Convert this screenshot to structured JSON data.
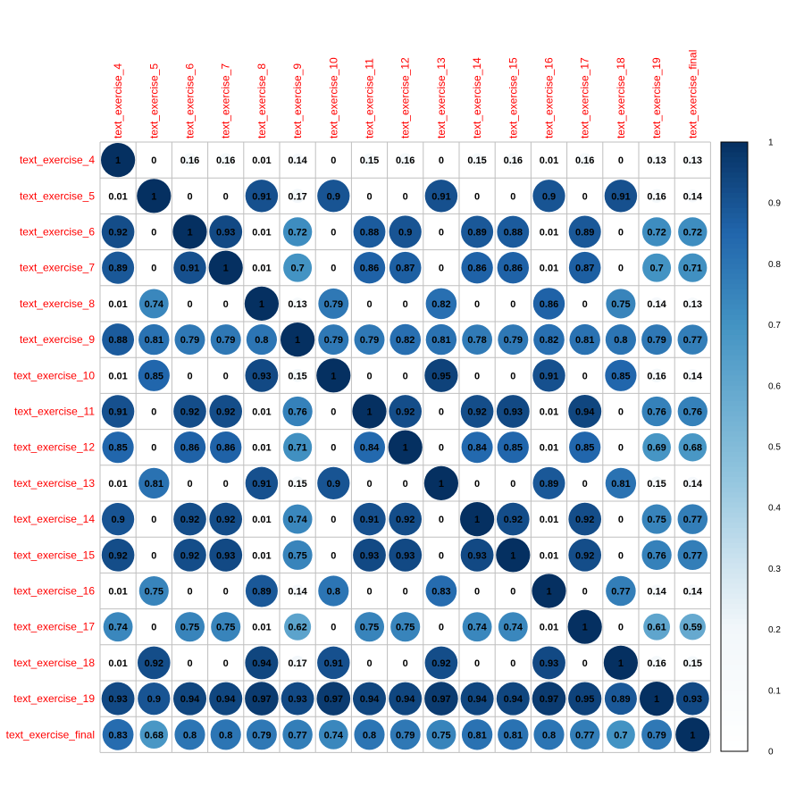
{
  "chart_data": {
    "type": "heatmap",
    "labels": [
      "text_exercise_4",
      "text_exercise_5",
      "text_exercise_6",
      "text_exercise_7",
      "text_exercise_8",
      "text_exercise_9",
      "text_exercise_10",
      "text_exercise_11",
      "text_exercise_12",
      "text_exercise_13",
      "text_exercise_14",
      "text_exercise_15",
      "text_exercise_16",
      "text_exercise_17",
      "text_exercise_18",
      "text_exercise_19",
      "text_exercise_final"
    ],
    "matrix": [
      [
        1,
        0,
        0.16,
        0.16,
        0.01,
        0.14,
        0,
        0.15,
        0.16,
        0,
        0.15,
        0.16,
        0.01,
        0.16,
        0,
        0.13,
        0.13
      ],
      [
        0.01,
        1,
        0,
        0,
        0.91,
        0.17,
        0.9,
        0,
        0,
        0.91,
        0,
        0,
        0.9,
        0,
        0.91,
        0.16,
        0.14
      ],
      [
        0.92,
        0,
        1,
        0.93,
        0.01,
        0.72,
        0,
        0.88,
        0.9,
        0,
        0.89,
        0.88,
        0.01,
        0.89,
        0,
        0.72,
        0.72
      ],
      [
        0.89,
        0,
        0.91,
        1,
        0.01,
        0.7,
        0,
        0.86,
        0.87,
        0,
        0.86,
        0.86,
        0.01,
        0.87,
        0,
        0.7,
        0.71
      ],
      [
        0.01,
        0.74,
        0,
        0,
        1,
        0.13,
        0.79,
        0,
        0,
        0.82,
        0,
        0,
        0.86,
        0,
        0.75,
        0.14,
        0.13
      ],
      [
        0.88,
        0.81,
        0.79,
        0.79,
        0.8,
        1,
        0.79,
        0.79,
        0.82,
        0.81,
        0.78,
        0.79,
        0.82,
        0.81,
        0.8,
        0.79,
        0.77
      ],
      [
        0.01,
        0.85,
        0,
        0,
        0.93,
        0.15,
        1,
        0,
        0,
        0.95,
        0,
        0,
        0.91,
        0,
        0.85,
        0.16,
        0.14
      ],
      [
        0.91,
        0,
        0.92,
        0.92,
        0.01,
        0.76,
        0,
        1,
        0.92,
        0,
        0.92,
        0.93,
        0.01,
        0.94,
        0,
        0.76,
        0.76
      ],
      [
        0.85,
        0,
        0.86,
        0.86,
        0.01,
        0.71,
        0,
        0.84,
        1,
        0,
        0.84,
        0.85,
        0.01,
        0.85,
        0,
        0.69,
        0.68
      ],
      [
        0.01,
        0.81,
        0,
        0,
        0.91,
        0.15,
        0.9,
        0,
        0,
        1,
        0,
        0,
        0.89,
        0,
        0.81,
        0.15,
        0.14
      ],
      [
        0.9,
        0,
        0.92,
        0.92,
        0.01,
        0.74,
        0,
        0.91,
        0.92,
        0,
        1,
        0.92,
        0.01,
        0.92,
        0,
        0.75,
        0.77
      ],
      [
        0.92,
        0,
        0.92,
        0.93,
        0.01,
        0.75,
        0,
        0.93,
        0.93,
        0,
        0.93,
        1,
        0.01,
        0.92,
        0,
        0.76,
        0.77
      ],
      [
        0.01,
        0.75,
        0,
        0,
        0.89,
        0.14,
        0.8,
        0,
        0,
        0.83,
        0,
        0,
        1,
        0,
        0.77,
        0.14,
        0.14
      ],
      [
        0.74,
        0,
        0.75,
        0.75,
        0.01,
        0.62,
        0,
        0.75,
        0.75,
        0,
        0.74,
        0.74,
        0.01,
        1,
        0,
        0.61,
        0.59
      ],
      [
        0.01,
        0.92,
        0,
        0,
        0.94,
        0.17,
        0.91,
        0,
        0,
        0.92,
        0,
        0,
        0.93,
        0,
        1,
        0.16,
        0.15
      ],
      [
        0.93,
        0.9,
        0.94,
        0.94,
        0.97,
        0.93,
        0.97,
        0.94,
        0.94,
        0.97,
        0.94,
        0.94,
        0.97,
        0.95,
        0.89,
        1,
        0.93
      ],
      [
        0.83,
        0.68,
        0.8,
        0.8,
        0.79,
        0.77,
        0.74,
        0.8,
        0.79,
        0.75,
        0.81,
        0.81,
        0.8,
        0.77,
        0.7,
        0.79,
        1
      ]
    ],
    "legend": {
      "ticks": [
        "0",
        "0.1",
        "0.2",
        "0.3",
        "0.4",
        "0.5",
        "0.6",
        "0.7",
        "0.8",
        "0.9",
        "1"
      ],
      "range": [
        0,
        1
      ]
    },
    "colors": {
      "low": "#ffffff",
      "mid": "#4393c3",
      "high": "#053061",
      "label": "#ff0000",
      "grid": "#bfbfbf"
    },
    "grid": true,
    "legend_position": "right"
  }
}
